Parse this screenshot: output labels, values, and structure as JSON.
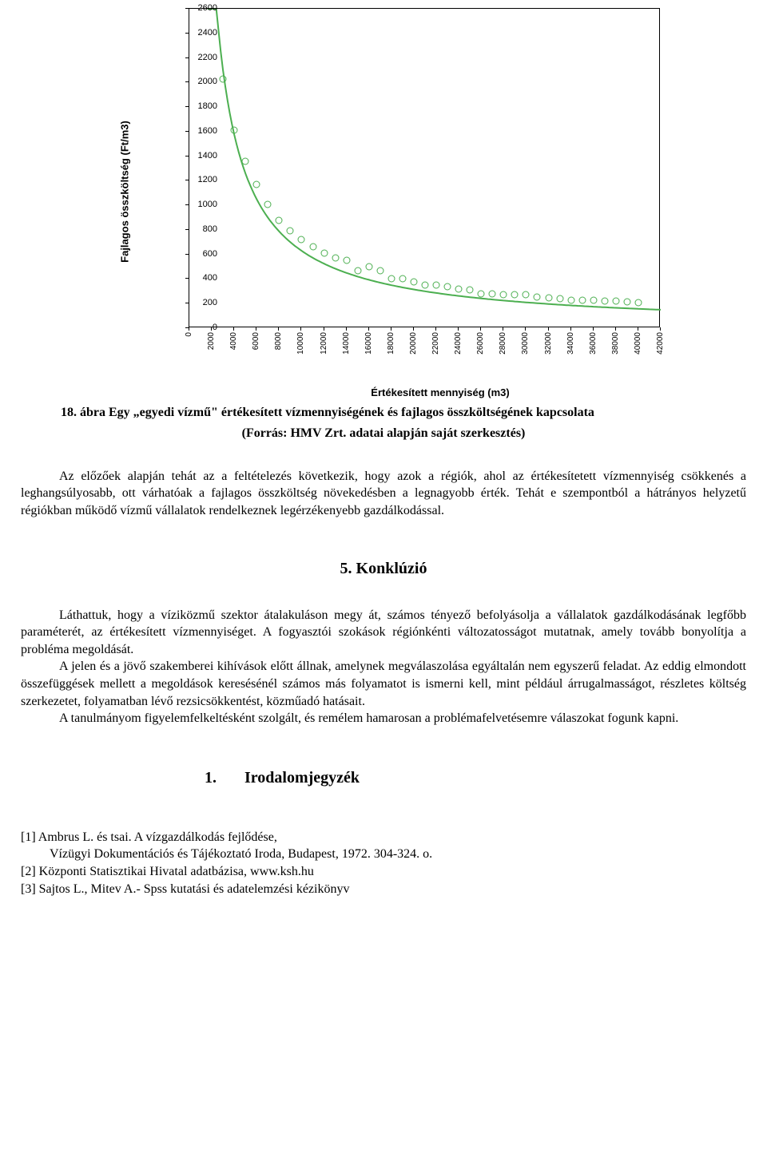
{
  "chart": {
    "type": "scatter-with-curve",
    "y_axis_label": "Fajlagos összköltség (Ft/m3)",
    "x_axis_label": "Értékesített mennyiség (m3)",
    "ylim": [
      0,
      2600
    ],
    "xlim": [
      0,
      42000
    ],
    "y_ticks": [
      0,
      200,
      400,
      600,
      800,
      1000,
      1200,
      1400,
      1600,
      1800,
      2000,
      2200,
      2400,
      2600
    ],
    "x_ticks": [
      0,
      2000,
      4000,
      6000,
      8000,
      10000,
      12000,
      14000,
      16000,
      18000,
      20000,
      22000,
      24000,
      26000,
      28000,
      30000,
      32000,
      34000,
      36000,
      38000,
      40000,
      42000
    ],
    "plot_border_color": "#000000",
    "background_color": "#ffffff",
    "marker_color": "#4caf50",
    "line_color": "#4caf50",
    "line_width": 2,
    "marker_style": "open-circle",
    "marker_size": 9,
    "tick_fontsize": 11,
    "label_fontsize": 13,
    "label_fontweight": "bold",
    "scatter_points": [
      [
        3000,
        2030
      ],
      [
        4000,
        1610
      ],
      [
        5000,
        1360
      ],
      [
        6000,
        1170
      ],
      [
        7000,
        1010
      ],
      [
        8000,
        880
      ],
      [
        9000,
        790
      ],
      [
        10000,
        720
      ],
      [
        11000,
        660
      ],
      [
        12000,
        610
      ],
      [
        13000,
        570
      ],
      [
        14000,
        550
      ],
      [
        15000,
        470
      ],
      [
        16000,
        500
      ],
      [
        17000,
        470
      ],
      [
        18000,
        400
      ],
      [
        19000,
        400
      ],
      [
        20000,
        380
      ],
      [
        21000,
        350
      ],
      [
        22000,
        350
      ],
      [
        23000,
        340
      ],
      [
        24000,
        320
      ],
      [
        25000,
        310
      ],
      [
        26000,
        280
      ],
      [
        27000,
        280
      ],
      [
        28000,
        270
      ],
      [
        29000,
        270
      ],
      [
        30000,
        270
      ],
      [
        31000,
        255
      ],
      [
        32000,
        250
      ],
      [
        33000,
        240
      ],
      [
        34000,
        230
      ],
      [
        35000,
        225
      ],
      [
        36000,
        225
      ],
      [
        37000,
        220
      ],
      [
        38000,
        220
      ],
      [
        39000,
        215
      ],
      [
        40000,
        210
      ]
    ],
    "curve_equation_hint": "y ≈ 6.3e6 / x (hyperbolic decay)"
  },
  "figure": {
    "caption": "18. ábra Egy „egyedi vízmű\" értékesített vízmennyiségének és fajlagos összköltségének kapcsolata",
    "source": "(Forrás: HMV Zrt. adatai alapján saját szerkesztés)"
  },
  "paragraphs": {
    "p1": "Az előzőek alapján tehát az a feltételezés következik, hogy azok a régiók, ahol az értékesítetett vízmennyiség csökkenés a leghangsúlyosabb, ott várhatóak a fajlagos összköltség növekedésben a legnagyobb érték. Tehát e szempontból a hátrányos helyzetű régiókban működő vízmű vállalatok rendelkeznek legérzékenyebb gazdálkodással."
  },
  "headings": {
    "conclusion": "5. Konklúzió",
    "bibliography_num": "1.",
    "bibliography_label": "Irodalomjegyzék"
  },
  "conclusion_paragraphs": {
    "c1": "Láthattuk, hogy a víziközmű szektor átalakuláson megy át, számos tényező befolyásolja a vállalatok gazdálkodásának legfőbb paraméterét, az értékesített vízmennyiséget. A fogyasztói szokások régiónkénti változatosságot mutatnak, amely tovább bonyolítja a probléma megoldását.",
    "c2": "A jelen és a jövő szakemberei kihívások előtt állnak, amelynek megválaszolása egyáltalán nem egyszerű feladat. Az eddig elmondott összefüggések mellett a megoldások keresésénél számos más folyamatot is ismerni kell, mint például árrugalmasságot, részletes költség szerkezetet, folyamatban lévő rezsicsökkentést, közműadó hatásait.",
    "c3": "A tanulmányom figyelemfelkeltésként szolgált, és remélem hamarosan a problémafelvetésemre válaszokat fogunk kapni."
  },
  "references": {
    "r1a": "[1] Ambrus L. és tsai. A vízgazdálkodás fejlődése,",
    "r1b": "Vízügyi Dokumentációs és Tájékoztató Iroda, Budapest, 1972.  304-324. o.",
    "r2": "[2] Központi Statisztikai Hivatal adatbázisa, www.ksh.hu",
    "r3": "[3] Sajtos L., Mitev A.- Spss kutatási és adatelemzési kézikönyv"
  }
}
